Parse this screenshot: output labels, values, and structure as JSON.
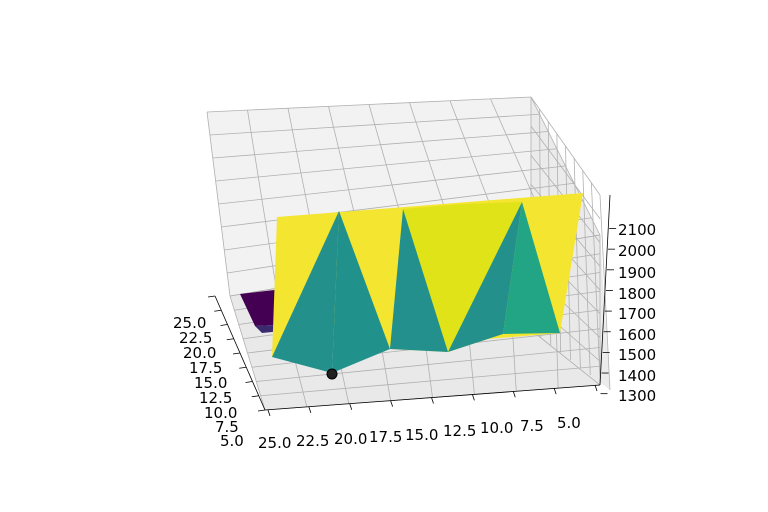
{
  "chart_data": {
    "type": "surface3d",
    "title": "",
    "xlabel": "",
    "ylabel": "",
    "zlabel": "",
    "x_ticks": [
      "25.0",
      "22.5",
      "20.0",
      "17.5",
      "15.0",
      "12.5",
      "10.0",
      "7.5",
      "5.0"
    ],
    "y_ticks": [
      "25.0",
      "22.5",
      "20.0",
      "17.5",
      "15.0",
      "12.5",
      "10.0",
      "7.5",
      "5.0"
    ],
    "z_ticks": [
      "1300",
      "1400",
      "1500",
      "1600",
      "1700",
      "1800",
      "1900",
      "2000",
      "2100"
    ],
    "zlim": [
      1250,
      2180
    ],
    "colormap": "viridis",
    "colors": {
      "yellow": "#f3e530",
      "yellow_green": "#dfe318",
      "teal": "#24908c",
      "teal_light": "#21a585",
      "purple": "#440154",
      "purple_mid": "#3b2a70",
      "marker": "#222222",
      "pane": "#f2f2f2",
      "grid": "#b0b0b0"
    },
    "surface_points": [
      {
        "x": 25.0,
        "y": 25.0,
        "z": 2140
      },
      {
        "x": 20.0,
        "y": 25.0,
        "z": 2150
      },
      {
        "x": 15.0,
        "y": 25.0,
        "z": 2150
      },
      {
        "x": 10.0,
        "y": 25.0,
        "z": 2150
      },
      {
        "x": 5.0,
        "y": 25.0,
        "z": 2160
      },
      {
        "x": 25.0,
        "y": 5.0,
        "z": 1450
      },
      {
        "x": 20.0,
        "y": 5.0,
        "z": 1390
      },
      {
        "x": 15.0,
        "y": 5.0,
        "z": 1450
      },
      {
        "x": 12.5,
        "y": 5.0,
        "z": 1460
      },
      {
        "x": 7.5,
        "y": 5.0,
        "z": 1520
      },
      {
        "x": 5.0,
        "y": 5.0,
        "z": 1560
      }
    ],
    "marker_point": {
      "x": 20.0,
      "y": 5.0,
      "z": 1390
    }
  }
}
